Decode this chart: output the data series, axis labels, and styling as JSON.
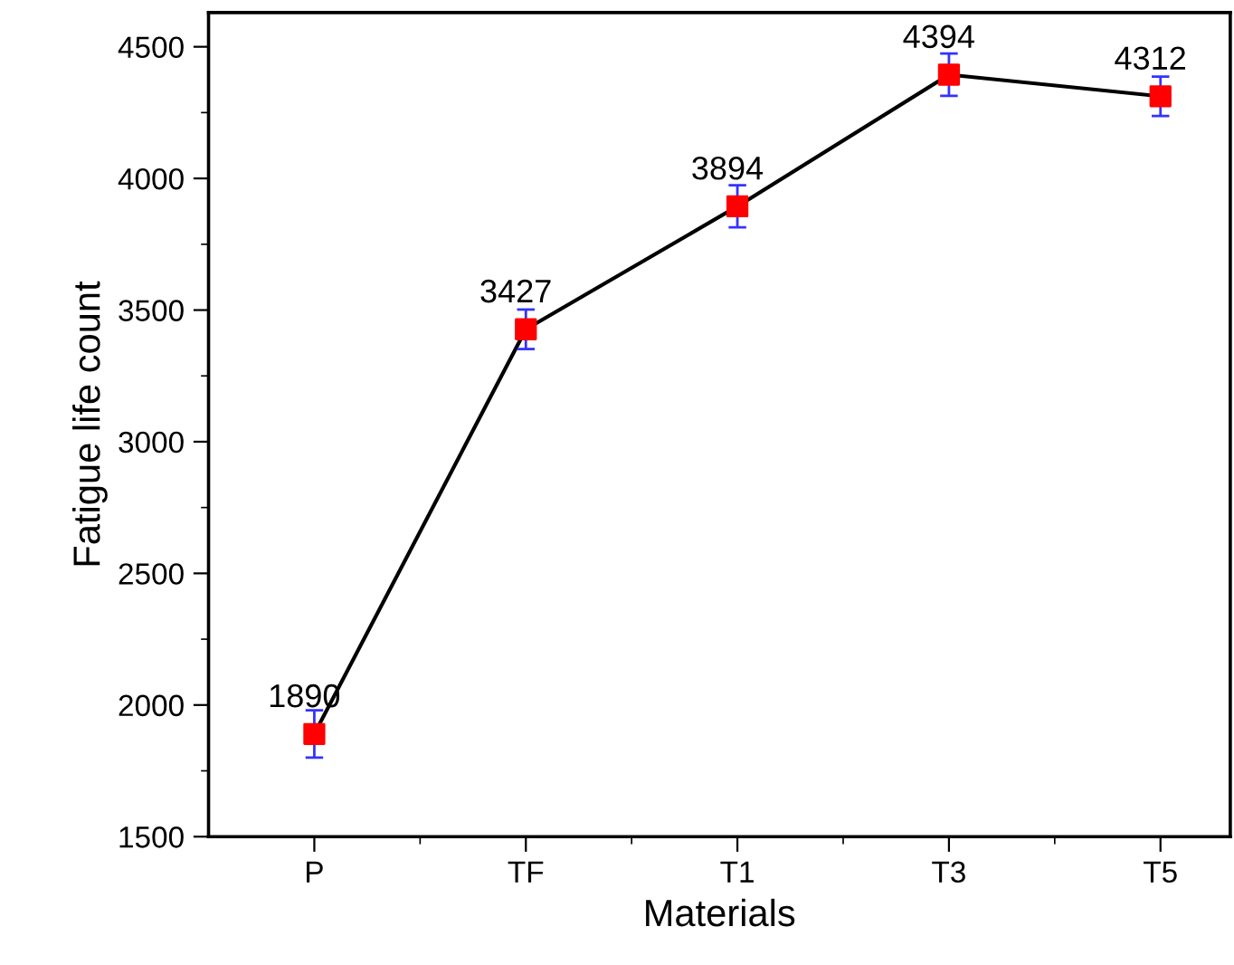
{
  "chart_data": {
    "type": "line",
    "xlabel": "Materials",
    "ylabel": "Fatigue life count",
    "categories": [
      "P",
      "TF",
      "T1",
      "T3",
      "T5"
    ],
    "series": [
      {
        "color": "#ff0000",
        "values": [
          1890,
          3427,
          3894,
          4394,
          4312
        ],
        "errors": [
          90,
          75,
          80,
          80,
          75
        ]
      }
    ],
    "ylim": [
      1500,
      4630
    ],
    "yticks": [
      1500,
      2000,
      2500,
      3000,
      3500,
      4000,
      4500
    ],
    "marker": "square",
    "line_style": "solid",
    "data_labels": true,
    "grid": false
  }
}
